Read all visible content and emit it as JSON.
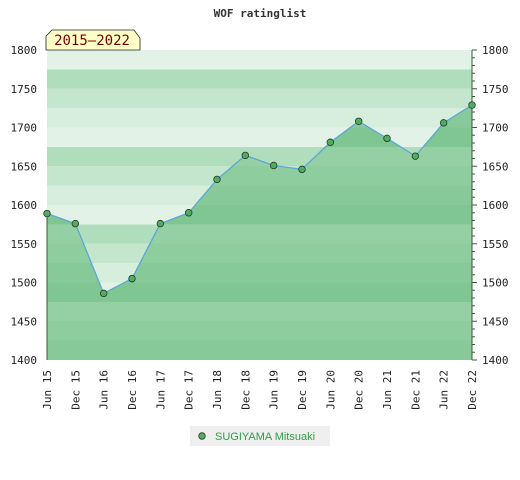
{
  "chart_data": {
    "type": "line",
    "title": "WOF ratinglist",
    "badge": "2015–2022",
    "categories": [
      "Jun 15",
      "Dec 15",
      "Jun 16",
      "Dec 16",
      "Jun 17",
      "Dec 17",
      "Jun 18",
      "Dec 18",
      "Jun 19",
      "Dec 19",
      "Jun 20",
      "Dec 20",
      "Jun 21",
      "Dec 21",
      "Jun 22",
      "Dec 22"
    ],
    "series": [
      {
        "name": "SUGIYAMA Mitsuaki",
        "values": [
          1589,
          1576,
          1486,
          1505,
          1576,
          1590,
          1633,
          1664,
          1651,
          1646,
          1681,
          1708,
          1686,
          1663,
          1706,
          1729
        ]
      }
    ],
    "ylim": [
      1400,
      1800
    ],
    "yticks": [
      1400,
      1450,
      1500,
      1550,
      1600,
      1650,
      1700,
      1750,
      1800
    ],
    "ytick_labels": [
      "1400",
      "1450",
      "1500",
      "1550",
      "1600",
      "1650",
      "1700",
      "1750",
      "1800"
    ],
    "y_axis_both_sides": true,
    "grid": false,
    "legend_position": "bottom-center",
    "colors": {
      "line": "#5aa9d6",
      "marker_fill": "#4fae5e",
      "marker_stroke": "#2a3a2a",
      "badge_fill": "#ffffc8",
      "badge_text": "#7a0000",
      "legend_text": "#2e9e48",
      "legend_bg": "#efefef"
    }
  }
}
